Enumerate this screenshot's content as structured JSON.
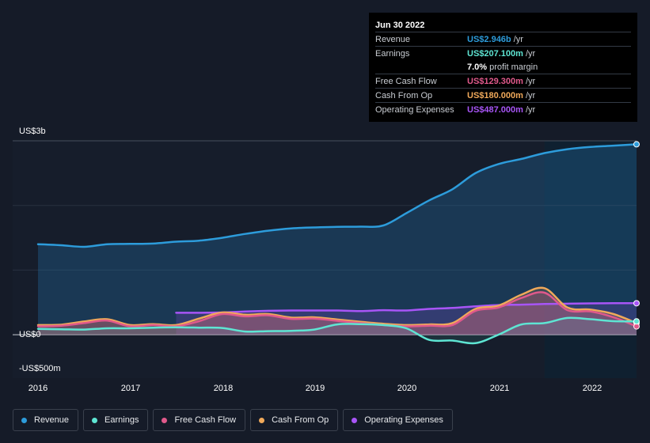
{
  "tooltip": {
    "date": "Jun 30 2022",
    "rows": [
      {
        "label": "Revenue",
        "value": "US$2.946b",
        "unit": "/yr",
        "color": "#2d9cdb"
      },
      {
        "label": "Earnings",
        "value": "US$207.100m",
        "unit": "/yr",
        "color": "#5ee5d3"
      },
      {
        "label": "",
        "value": "7.0%",
        "unit": "profit margin",
        "color": "#ffffff"
      },
      {
        "label": "Free Cash Flow",
        "value": "US$129.300m",
        "unit": "/yr",
        "color": "#e0598b"
      },
      {
        "label": "Cash From Op",
        "value": "US$180.000m",
        "unit": "/yr",
        "color": "#f0a95a"
      },
      {
        "label": "Operating Expenses",
        "value": "US$487.000m",
        "unit": "/yr",
        "color": "#a855f7"
      }
    ]
  },
  "axis": {
    "y_top_label": "US$3b",
    "y_zero_label": "US$0",
    "y_bottom_label": "-US$500m"
  },
  "legend": [
    {
      "label": "Revenue",
      "color": "#2d9cdb"
    },
    {
      "label": "Earnings",
      "color": "#5ee5d3"
    },
    {
      "label": "Free Cash Flow",
      "color": "#e0598b"
    },
    {
      "label": "Cash From Op",
      "color": "#f0a95a"
    },
    {
      "label": "Operating Expenses",
      "color": "#a855f7"
    }
  ],
  "chart_data": {
    "type": "line",
    "title": "",
    "xlabel": "",
    "ylabel": "",
    "unit": "US$m",
    "ylim": [
      -500,
      3000
    ],
    "xlim": [
      2016.0,
      2022.5
    ],
    "x_ticks": [
      "2016",
      "2017",
      "2018",
      "2019",
      "2020",
      "2021",
      "2022"
    ],
    "highlight_start": 2021.5,
    "series": [
      {
        "name": "Revenue",
        "color": "#2d9cdb",
        "points": [
          [
            2016.0,
            1400
          ],
          [
            2016.25,
            1385
          ],
          [
            2016.5,
            1360
          ],
          [
            2016.75,
            1400
          ],
          [
            2017.0,
            1405
          ],
          [
            2017.25,
            1410
          ],
          [
            2017.5,
            1440
          ],
          [
            2017.75,
            1455
          ],
          [
            2018.0,
            1500
          ],
          [
            2018.25,
            1560
          ],
          [
            2018.5,
            1610
          ],
          [
            2018.75,
            1645
          ],
          [
            2019.0,
            1660
          ],
          [
            2019.25,
            1670
          ],
          [
            2019.5,
            1672
          ],
          [
            2019.75,
            1690
          ],
          [
            2020.0,
            1880
          ],
          [
            2020.25,
            2080
          ],
          [
            2020.5,
            2250
          ],
          [
            2020.75,
            2500
          ],
          [
            2021.0,
            2640
          ],
          [
            2021.25,
            2720
          ],
          [
            2021.5,
            2810
          ],
          [
            2021.75,
            2870
          ],
          [
            2022.0,
            2905
          ],
          [
            2022.25,
            2925
          ],
          [
            2022.5,
            2946
          ]
        ]
      },
      {
        "name": "Earnings",
        "color": "#5ee5d3",
        "points": [
          [
            2016.0,
            90
          ],
          [
            2016.25,
            85
          ],
          [
            2016.5,
            80
          ],
          [
            2016.75,
            100
          ],
          [
            2017.0,
            100
          ],
          [
            2017.25,
            110
          ],
          [
            2017.5,
            115
          ],
          [
            2017.75,
            110
          ],
          [
            2018.0,
            105
          ],
          [
            2018.25,
            50
          ],
          [
            2018.5,
            55
          ],
          [
            2018.75,
            60
          ],
          [
            2019.0,
            80
          ],
          [
            2019.25,
            160
          ],
          [
            2019.5,
            165
          ],
          [
            2019.75,
            150
          ],
          [
            2020.0,
            100
          ],
          [
            2020.25,
            -80
          ],
          [
            2020.5,
            -90
          ],
          [
            2020.75,
            -130
          ],
          [
            2021.0,
            0
          ],
          [
            2021.25,
            160
          ],
          [
            2021.5,
            180
          ],
          [
            2021.75,
            260
          ],
          [
            2022.0,
            240
          ],
          [
            2022.25,
            210
          ],
          [
            2022.5,
            207
          ]
        ]
      },
      {
        "name": "Free Cash Flow",
        "color": "#e0598b",
        "points": [
          [
            2016.0,
            130
          ],
          [
            2016.25,
            140
          ],
          [
            2016.5,
            180
          ],
          [
            2016.75,
            220
          ],
          [
            2017.0,
            130
          ],
          [
            2017.25,
            150
          ],
          [
            2017.5,
            130
          ],
          [
            2017.75,
            210
          ],
          [
            2018.0,
            320
          ],
          [
            2018.25,
            285
          ],
          [
            2018.5,
            300
          ],
          [
            2018.75,
            245
          ],
          [
            2019.0,
            250
          ],
          [
            2019.25,
            215
          ],
          [
            2019.5,
            180
          ],
          [
            2019.75,
            150
          ],
          [
            2020.0,
            130
          ],
          [
            2020.25,
            140
          ],
          [
            2020.5,
            150
          ],
          [
            2020.75,
            370
          ],
          [
            2021.0,
            420
          ],
          [
            2021.25,
            570
          ],
          [
            2021.5,
            650
          ],
          [
            2021.75,
            380
          ],
          [
            2022.0,
            360
          ],
          [
            2022.25,
            270
          ],
          [
            2022.5,
            129
          ]
        ]
      },
      {
        "name": "Cash From Op",
        "color": "#f0a95a",
        "points": [
          [
            2016.0,
            150
          ],
          [
            2016.25,
            155
          ],
          [
            2016.5,
            205
          ],
          [
            2016.75,
            240
          ],
          [
            2017.0,
            150
          ],
          [
            2017.25,
            165
          ],
          [
            2017.5,
            150
          ],
          [
            2017.75,
            250
          ],
          [
            2018.0,
            345
          ],
          [
            2018.25,
            310
          ],
          [
            2018.5,
            320
          ],
          [
            2018.75,
            265
          ],
          [
            2019.0,
            270
          ],
          [
            2019.25,
            235
          ],
          [
            2019.5,
            200
          ],
          [
            2019.75,
            170
          ],
          [
            2020.0,
            150
          ],
          [
            2020.25,
            160
          ],
          [
            2020.5,
            180
          ],
          [
            2020.75,
            400
          ],
          [
            2021.0,
            450
          ],
          [
            2021.25,
            620
          ],
          [
            2021.5,
            720
          ],
          [
            2021.75,
            420
          ],
          [
            2022.0,
            390
          ],
          [
            2022.25,
            320
          ],
          [
            2022.5,
            180
          ]
        ]
      },
      {
        "name": "Operating Expenses",
        "color": "#a855f7",
        "start": 2017.5,
        "points": [
          [
            2017.5,
            340
          ],
          [
            2017.75,
            340
          ],
          [
            2018.0,
            345
          ],
          [
            2018.25,
            360
          ],
          [
            2018.5,
            370
          ],
          [
            2018.75,
            375
          ],
          [
            2019.0,
            375
          ],
          [
            2019.25,
            375
          ],
          [
            2019.5,
            365
          ],
          [
            2019.75,
            380
          ],
          [
            2020.0,
            375
          ],
          [
            2020.25,
            400
          ],
          [
            2020.5,
            415
          ],
          [
            2020.75,
            440
          ],
          [
            2021.0,
            460
          ],
          [
            2021.25,
            465
          ],
          [
            2021.5,
            475
          ],
          [
            2021.75,
            480
          ],
          [
            2022.0,
            485
          ],
          [
            2022.25,
            487
          ],
          [
            2022.5,
            487
          ]
        ]
      }
    ]
  }
}
